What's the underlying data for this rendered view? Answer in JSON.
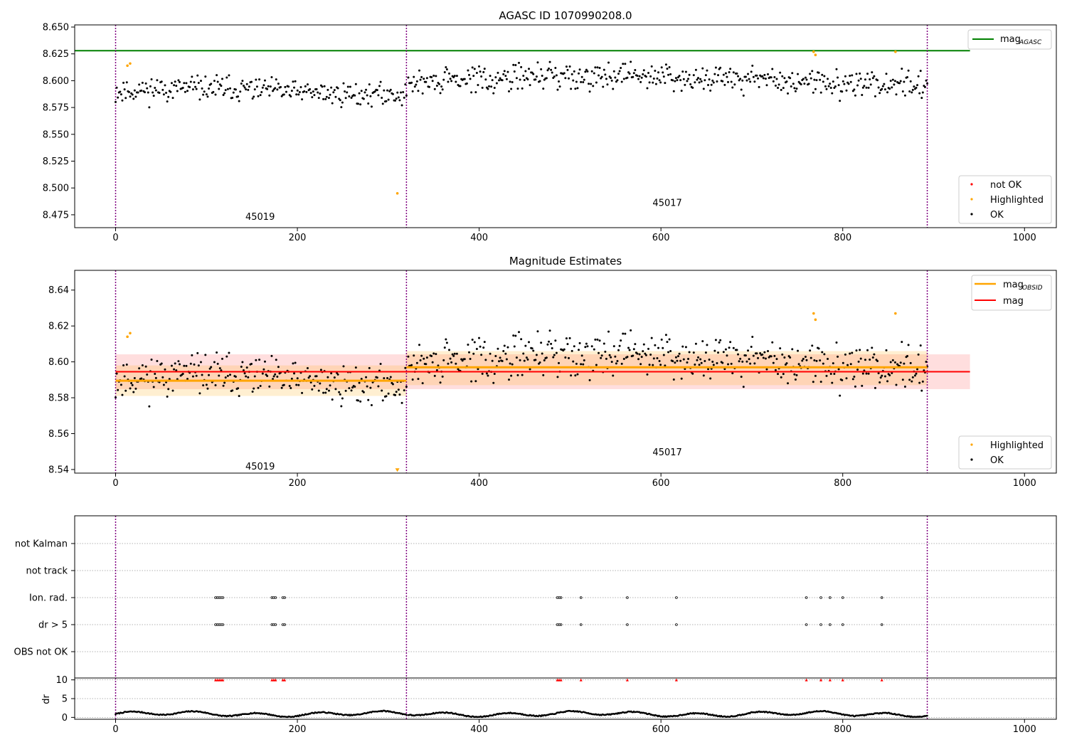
{
  "chart_data": [
    {
      "type": "scatter",
      "title": "AGASC ID 1070990208.0",
      "xlim": [
        -45,
        1035
      ],
      "ylim": [
        8.463,
        8.652
      ],
      "xticks": [
        0,
        200,
        400,
        600,
        800,
        1000
      ],
      "yticks": [
        8.475,
        8.5,
        8.525,
        8.55,
        8.575,
        8.6,
        8.625,
        8.65
      ],
      "ytick_labels": [
        "8.475",
        "8.500",
        "8.525",
        "8.550",
        "8.575",
        "8.600",
        "8.625",
        "8.650"
      ],
      "obsid_boundaries": [
        0,
        320,
        893
      ],
      "obsid_labels": [
        {
          "text": "45019",
          "x": 159,
          "y": 8.473
        },
        {
          "text": "45017",
          "x": 607,
          "y": 8.486
        }
      ],
      "lines": [
        {
          "name": "mag_AGASC",
          "label_main": "mag",
          "label_sub": "AGASC",
          "color": "#008000",
          "y": 8.628,
          "x": [
            -45,
            940
          ]
        }
      ],
      "series": [
        {
          "name": "not OK",
          "color": "#ff0000",
          "values": []
        },
        {
          "name": "Highlighted",
          "color": "#ffa500",
          "points": [
            [
              13,
              8.614
            ],
            [
              16,
              8.616
            ],
            [
              310,
              8.495
            ],
            [
              768,
              8.627
            ],
            [
              770,
              8.624
            ],
            [
              858,
              8.627
            ]
          ]
        },
        {
          "name": "OK",
          "color": "#000000",
          "segments": [
            {
              "x0": 0,
              "x1": 320,
              "n": 260,
              "base": 8.59,
              "spread": 0.009,
              "seed": 11
            },
            {
              "x0": 322,
              "x1": 893,
              "n": 470,
              "base": 8.597,
              "spread": 0.01,
              "seed": 29
            }
          ]
        }
      ],
      "legend": {
        "upper": "top-right",
        "lower": "bottom-right"
      }
    },
    {
      "type": "scatter",
      "title": "Magnitude Estimates",
      "xlim": [
        -45,
        1035
      ],
      "ylim": [
        8.538,
        8.651
      ],
      "xticks": [
        0,
        200,
        400,
        600,
        800,
        1000
      ],
      "yticks": [
        8.54,
        8.56,
        8.58,
        8.6,
        8.62,
        8.64
      ],
      "ytick_labels": [
        "8.54",
        "8.56",
        "8.58",
        "8.60",
        "8.62",
        "8.64"
      ],
      "obsid_boundaries": [
        0,
        320,
        893
      ],
      "obsid_labels": [
        {
          "text": "45019",
          "x": 159,
          "y": 8.5415
        },
        {
          "text": "45017",
          "x": 607,
          "y": 8.5495
        }
      ],
      "mag": {
        "label": "mag",
        "value": 8.5945,
        "band": [
          8.5848,
          8.6042
        ],
        "x": [
          0,
          940
        ],
        "color": "#ff0000"
      },
      "mag_obsid": [
        {
          "x": [
            0,
            320
          ],
          "value": 8.5895,
          "band": [
            8.581,
            8.598
          ]
        },
        {
          "x": [
            320,
            893
          ],
          "value": 8.597,
          "band": [
            8.587,
            8.606
          ]
        }
      ],
      "mag_obsid_legend": {
        "label_main": "mag",
        "label_sub": "OBSID",
        "color": "#ffa500"
      },
      "series": [
        {
          "name": "Highlighted",
          "color": "#ffa500",
          "points": [
            [
              13,
              8.614
            ],
            [
              16,
              8.616
            ],
            [
              310,
              8.5395
            ],
            [
              768,
              8.627
            ],
            [
              770,
              8.6235
            ],
            [
              858,
              8.627
            ]
          ]
        },
        {
          "name": "OK",
          "color": "#000000",
          "segments": [
            {
              "x0": 0,
              "x1": 320,
              "n": 260,
              "base": 8.59,
              "spread": 0.009,
              "seed": 11
            },
            {
              "x0": 322,
              "x1": 893,
              "n": 470,
              "base": 8.597,
              "spread": 0.01,
              "seed": 29
            }
          ]
        }
      ],
      "legend": {
        "upper": "top-right",
        "lower": "bottom-right"
      }
    },
    {
      "type": "scatter",
      "title": "",
      "xlim": [
        -45,
        1035
      ],
      "categories": [
        "not Kalman",
        "not track",
        "Ion. rad.",
        "dr > 5",
        "OBS not OK"
      ],
      "flag_points": {
        "Ion. rad.": [
          110,
          112,
          114,
          116,
          118,
          172,
          174,
          176,
          184,
          186,
          486,
          488,
          490,
          512,
          563,
          617,
          760,
          776,
          786,
          800,
          843
        ],
        "dr > 5": [
          110,
          112,
          114,
          116,
          118,
          172,
          174,
          176,
          184,
          186,
          486,
          488,
          490,
          512,
          563,
          617,
          760,
          776,
          786,
          800,
          843
        ]
      },
      "obsid_boundaries": [
        0,
        320,
        893
      ],
      "dr": {
        "ylabel": "dr",
        "yticks": [
          0,
          5,
          10
        ],
        "ylim": [
          -0.5,
          10.5
        ],
        "clipped_x": [
          110,
          112,
          114,
          116,
          118,
          172,
          174,
          176,
          184,
          186,
          486,
          488,
          490,
          512,
          563,
          617,
          760,
          776,
          786,
          800,
          843
        ]
      }
    }
  ]
}
